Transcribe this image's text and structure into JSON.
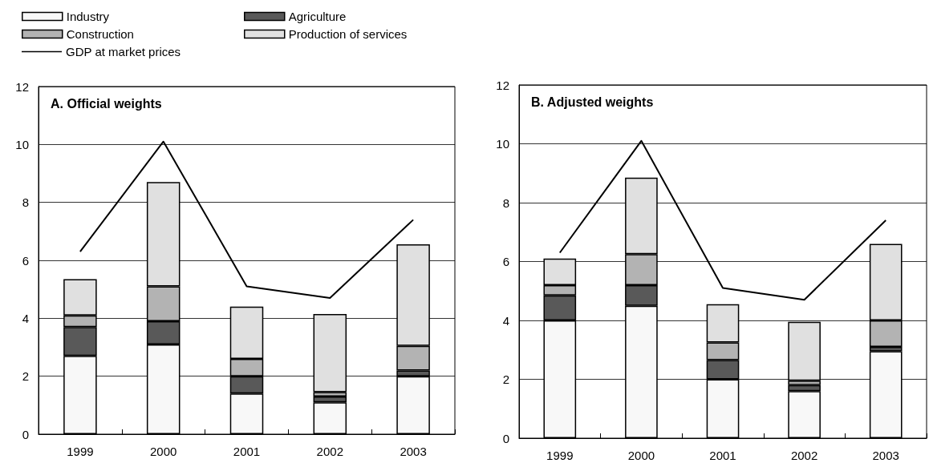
{
  "chart_data": [
    {
      "type": "bar",
      "title": "A. Official weights",
      "stacked": true,
      "categories": [
        "1999",
        "2000",
        "2001",
        "2002",
        "2003"
      ],
      "ylim": [
        0,
        12
      ],
      "yticks": [
        0,
        2,
        4,
        6,
        8,
        10,
        12
      ],
      "grid": "y",
      "legend": "top left",
      "series": [
        {
          "name": "Industry",
          "color": "#f8f8f8",
          "values": [
            2.7,
            3.1,
            1.4,
            1.1,
            2.0
          ]
        },
        {
          "name": "Agriculture",
          "color": "#595959",
          "values": [
            1.0,
            0.8,
            0.6,
            0.2,
            0.2
          ]
        },
        {
          "name": "Construction",
          "color": "#b3b3b3",
          "values": [
            0.4,
            1.2,
            0.6,
            0.15,
            0.85
          ]
        },
        {
          "name": "Production of services",
          "color": "#e0e0e0",
          "values": [
            1.25,
            3.6,
            1.8,
            2.7,
            3.5
          ]
        },
        {
          "name": "GDP at market prices",
          "type": "line",
          "color": "#000000",
          "values": [
            6.3,
            10.1,
            5.1,
            4.7,
            7.4
          ]
        }
      ]
    },
    {
      "type": "bar",
      "title": "B. Adjusted weights",
      "stacked": true,
      "categories": [
        "1999",
        "2000",
        "2001",
        "2002",
        "2003"
      ],
      "ylim": [
        0,
        12
      ],
      "yticks": [
        0,
        2,
        4,
        6,
        8,
        10,
        12
      ],
      "grid": "y",
      "series": [
        {
          "color": "#f8f8f8",
          "values": [
            4.0,
            4.5,
            2.0,
            1.6,
            2.95
          ]
        },
        {
          "color": "#595959",
          "values": [
            0.85,
            0.7,
            0.65,
            0.2,
            0.15
          ]
        },
        {
          "color": "#b3b3b3",
          "values": [
            0.35,
            1.05,
            0.6,
            0.15,
            0.9
          ]
        },
        {
          "color": "#e0e0e0",
          "values": [
            0.9,
            2.6,
            1.3,
            2.0,
            2.6
          ]
        },
        {
          "type": "line",
          "color": "#000000",
          "values": [
            6.3,
            10.1,
            5.1,
            4.7,
            7.4
          ]
        }
      ]
    }
  ]
}
